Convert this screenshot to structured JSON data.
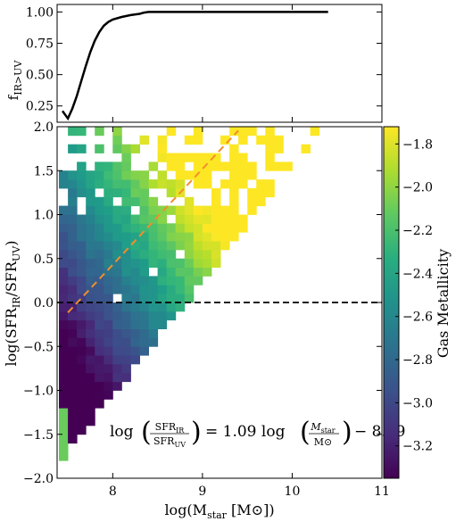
{
  "chart_data": [
    {
      "type": "line",
      "name": "top-panel",
      "ylabel_main": "f",
      "ylabel_sub": "IR>UV",
      "xlim": [
        7.38,
        11.0
      ],
      "ylim": [
        0.12,
        1.06
      ],
      "yticks": [
        0.25,
        0.5,
        0.75,
        1.0
      ],
      "ytick_labels": [
        "0.25",
        "0.50",
        "0.75",
        "1.00"
      ],
      "series": [
        {
          "color": "#000000",
          "x": [
            7.44,
            7.5,
            7.55,
            7.6,
            7.65,
            7.7,
            7.75,
            7.8,
            7.85,
            7.9,
            7.95,
            8.0,
            8.1,
            8.2,
            8.3,
            8.35,
            8.4,
            8.6,
            9.0,
            9.5,
            10.0,
            10.4
          ],
          "y": [
            0.21,
            0.15,
            0.23,
            0.33,
            0.45,
            0.57,
            0.68,
            0.77,
            0.84,
            0.89,
            0.92,
            0.94,
            0.96,
            0.975,
            0.985,
            0.995,
            1.0,
            1.0,
            1.0,
            1.0,
            1.0,
            1.0
          ]
        }
      ]
    },
    {
      "type": "heatmap",
      "name": "main-panel",
      "xlabel_main": "log(M",
      "xlabel_sub": "star",
      "xlabel_tail": " [M⊙])",
      "ylabel": "log(SFR_IR/SFR_UV)",
      "xlim": [
        7.38,
        11.0
      ],
      "ylim": [
        -2.0,
        2.0
      ],
      "xticks": [
        8,
        9,
        10,
        11
      ],
      "xtick_labels": [
        "8",
        "9",
        "10",
        "11"
      ],
      "yticks": [
        -2.0,
        -1.5,
        -1.0,
        -0.5,
        0.0,
        0.5,
        1.0,
        1.5,
        2.0
      ],
      "ytick_labels": [
        "−2.0",
        "−1.5",
        "−1.0",
        "−0.5",
        "0.0",
        "0.5",
        "1.0",
        "1.5",
        "2.0"
      ],
      "bin_width_x": 0.1,
      "bin_width_y": 0.1,
      "colorbar": {
        "label": "Gas Metallicity",
        "range": [
          -3.35,
          -1.72
        ],
        "ticks": [
          -3.2,
          -3.0,
          -2.8,
          -2.6,
          -2.4,
          -2.2,
          -2.0,
          -1.8
        ],
        "tick_labels": [
          "−3.2",
          "−3.0",
          "−2.8",
          "−2.6",
          "−2.4",
          "−2.2",
          "−2.0",
          "−1.8"
        ],
        "colormap": "viridis"
      },
      "reference_lines": [
        {
          "kind": "horizontal",
          "y": 0.0,
          "style": "dashed",
          "color": "#000000"
        },
        {
          "kind": "fit",
          "slope": 1.09,
          "intercept": -8.29,
          "x_range": [
            7.5,
            9.4
          ],
          "style": "dashed",
          "color": "#f28e2b"
        }
      ],
      "annotation": {
        "log": "log",
        "num1": "SFR",
        "num1_sub": "IR",
        "den1": "SFR",
        "den1_sub": "UV",
        "middle": "= 1.09 log",
        "num2": "M",
        "num2_sub": "star",
        "den2": "M⊙",
        "tail": "− 8.29"
      }
    }
  ]
}
